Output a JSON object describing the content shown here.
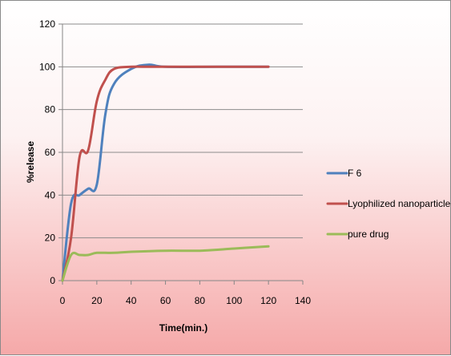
{
  "chart_data": {
    "type": "line",
    "title": "",
    "xlabel": "Time(min.)",
    "ylabel": "%release",
    "xlim": [
      0,
      140
    ],
    "ylim": [
      0,
      120
    ],
    "x_ticks": [
      0,
      20,
      40,
      60,
      80,
      100,
      120,
      140
    ],
    "y_ticks": [
      0,
      20,
      40,
      60,
      80,
      100,
      120
    ],
    "grid": "horizontal",
    "legend_position": "right",
    "series": [
      {
        "name": "F 6",
        "color": "#4f81bd",
        "x": [
          0,
          5,
          10,
          15,
          20,
          25,
          30,
          40,
          50,
          60,
          90,
          120
        ],
        "y": [
          0,
          36,
          40,
          43,
          45,
          78,
          92,
          99,
          101,
          100,
          100,
          100
        ]
      },
      {
        "name": "Lyophilized nanoparticle",
        "color": "#c0504d",
        "x": [
          0,
          5,
          10,
          15,
          20,
          25,
          30,
          40,
          50,
          60,
          90,
          120
        ],
        "y": [
          0,
          20,
          58,
          61,
          84,
          94,
          99,
          100,
          100,
          100,
          100,
          100
        ]
      },
      {
        "name": "pure drug",
        "color": "#9bbb59",
        "x": [
          0,
          5,
          10,
          15,
          20,
          30,
          40,
          60,
          80,
          100,
          120
        ],
        "y": [
          0,
          12,
          12,
          12,
          13,
          13,
          13.5,
          14,
          14,
          15,
          16
        ]
      }
    ]
  }
}
